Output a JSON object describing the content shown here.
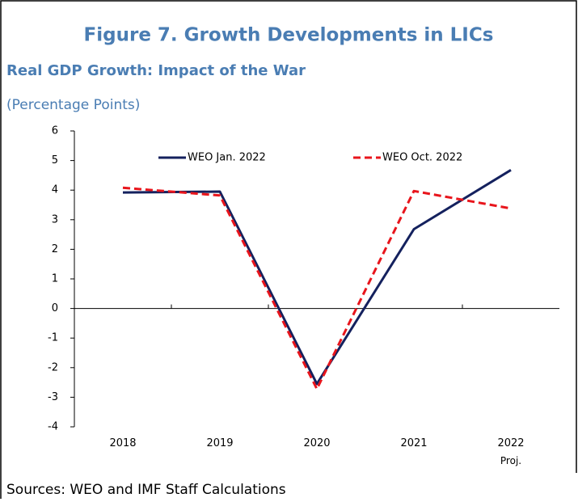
{
  "chart_data": {
    "type": "line",
    "title": "Figure 7. Growth Developments in LICs",
    "subtitle": "Real GDP Growth: Impact of the War",
    "y_label": "(Percentage Points)",
    "source": "Sources: WEO and IMF Staff Calculations",
    "categories": [
      "2018",
      "2019",
      "2020",
      "2021",
      "2022\nProj."
    ],
    "series": [
      {
        "name": "WEO Jan. 2022",
        "color": "#14215e",
        "dash": "solid",
        "values": [
          3.92,
          3.95,
          -2.55,
          2.68,
          4.68
        ]
      },
      {
        "name": "WEO Oct. 2022",
        "color": "#e8151c",
        "dash": "dashed",
        "values": [
          4.08,
          3.82,
          -2.72,
          3.97,
          3.38
        ]
      }
    ],
    "ylim": [
      -4,
      6
    ],
    "yticks": [
      -4,
      -3,
      -2,
      -1,
      0,
      1,
      2,
      3,
      4,
      5,
      6
    ],
    "grid": false,
    "legend": "top"
  }
}
